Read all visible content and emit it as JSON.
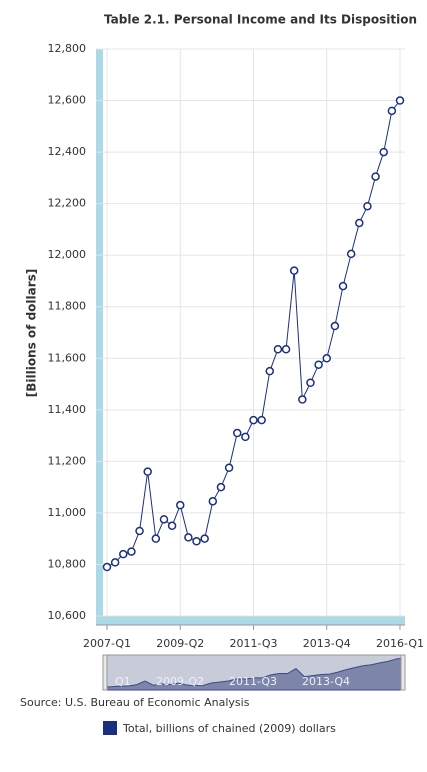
{
  "chart_data": {
    "type": "line",
    "title": "Table 2.1. Personal Income and Its Disposition",
    "y_label": "[Billions of dollars]",
    "source": "Source: U.S. Bureau of Economic Analysis",
    "categories": [
      "2007-Q1",
      null,
      null,
      null,
      null,
      null,
      null,
      null,
      null,
      "2009-Q2",
      null,
      null,
      null,
      null,
      null,
      null,
      null,
      null,
      "2011-Q3",
      null,
      null,
      null,
      null,
      null,
      null,
      null,
      null,
      "2013-Q4",
      null,
      null,
      null,
      null,
      null,
      null,
      null,
      null,
      "2016-Q1"
    ],
    "series": [
      {
        "name": "Total, billions of chained (2009) dollars",
        "color": "#1a2f80",
        "values": [
          10790,
          10808,
          10840,
          10850,
          10930,
          11160,
          10900,
          10975,
          10950,
          11030,
          10905,
          10890,
          10900,
          11045,
          11100,
          11175,
          11310,
          11295,
          11360,
          11360,
          11550,
          11635,
          11635,
          11940,
          11440,
          11505,
          11575,
          11600,
          11725,
          11880,
          12005,
          12125,
          12190,
          12305,
          12400,
          12560,
          12600
        ]
      }
    ],
    "ylim": [
      10600,
      12800
    ],
    "yticks": [
      {
        "value": 10600,
        "label": "10,600"
      },
      {
        "value": 10800,
        "label": "10,800"
      },
      {
        "value": 11000,
        "label": "11,000"
      },
      {
        "value": 11200,
        "label": "11,200"
      },
      {
        "value": 11400,
        "label": "11,400"
      },
      {
        "value": 11600,
        "label": "11,600"
      },
      {
        "value": 11800,
        "label": "11,800"
      },
      {
        "value": 12000,
        "label": "12,000"
      },
      {
        "value": 12200,
        "label": "12,200"
      },
      {
        "value": 12400,
        "label": "12,400"
      },
      {
        "value": 12600,
        "label": "12,600"
      },
      {
        "value": 12800,
        "label": "12,800"
      }
    ],
    "grid": true,
    "navigator_labels": [
      "Q1",
      "2009-Q2",
      "2011-Q3",
      "2013-Q4"
    ]
  }
}
